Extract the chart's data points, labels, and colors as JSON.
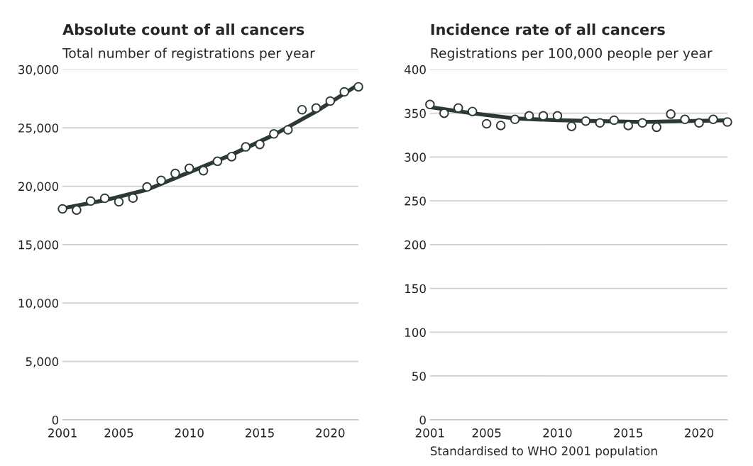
{
  "chart_data": [
    {
      "type": "scatter",
      "title": "Absolute count of all cancers",
      "subtitle": "Total number of registrations per year",
      "x": [
        2001,
        2002,
        2003,
        2004,
        2005,
        2006,
        2007,
        2008,
        2009,
        2010,
        2011,
        2012,
        2013,
        2014,
        2015,
        2016,
        2017,
        2018,
        2019,
        2020,
        2021,
        2022
      ],
      "series": [
        {
          "type": "line",
          "marker": "none",
          "color": "#2b3a33",
          "x": [
            2001,
            2004,
            2007,
            2010,
            2013,
            2016,
            2019,
            2022
          ],
          "values": [
            18100,
            18800,
            19700,
            21200,
            22700,
            24400,
            26400,
            28700
          ]
        },
        {
          "marker": "circle",
          "color": "#ffffff",
          "values": [
            18060,
            17960,
            18730,
            18970,
            18670,
            18990,
            19940,
            20500,
            21090,
            21540,
            21330,
            22140,
            22530,
            23370,
            23580,
            24480,
            24830,
            26550,
            26690,
            27290,
            28080,
            28510
          ]
        }
      ],
      "xlim": [
        2001,
        2022
      ],
      "xticks": [
        2001,
        2005,
        2010,
        2015,
        2020
      ],
      "ylim": [
        0,
        30000
      ],
      "yticks": [
        {
          "value": 0,
          "label": "0"
        },
        {
          "value": 5000,
          "label": "5,000"
        },
        {
          "value": 10000,
          "label": "10,000"
        },
        {
          "value": 15000,
          "label": "15,000"
        },
        {
          "value": 20000,
          "label": "20,000"
        },
        {
          "value": 25000,
          "label": "25,000"
        },
        {
          "value": 30000,
          "label": "30,000"
        }
      ],
      "grid": "y",
      "legend": false
    },
    {
      "type": "scatter",
      "title": "Incidence rate of all cancers",
      "subtitle": "Registrations per 100,000 people per year",
      "x": [
        2001,
        2002,
        2003,
        2004,
        2005,
        2006,
        2007,
        2008,
        2009,
        2010,
        2011,
        2012,
        2013,
        2014,
        2015,
        2016,
        2017,
        2018,
        2019,
        2020,
        2021,
        2022
      ],
      "series": [
        {
          "type": "line",
          "marker": "none",
          "color": "#2b3a33",
          "x": [
            2001,
            2004,
            2007,
            2010,
            2013,
            2016,
            2019,
            2022
          ],
          "values": [
            357,
            350,
            344,
            342,
            341,
            340,
            341,
            342
          ]
        },
        {
          "marker": "circle",
          "color": "#ffffff",
          "values": [
            360,
            350,
            356,
            352,
            338,
            336,
            343,
            347,
            347,
            347,
            335,
            341,
            339,
            342,
            336,
            339,
            334,
            349,
            343,
            339,
            343,
            340
          ]
        }
      ],
      "xlim": [
        2001,
        2022
      ],
      "xticks": [
        2001,
        2005,
        2010,
        2015,
        2020
      ],
      "ylim": [
        0,
        400
      ],
      "yticks": [
        0,
        50,
        100,
        150,
        200,
        250,
        300,
        350,
        400
      ],
      "grid": "y",
      "legend": false,
      "annotations": [
        "Standardised to WHO 2001 population"
      ]
    }
  ]
}
